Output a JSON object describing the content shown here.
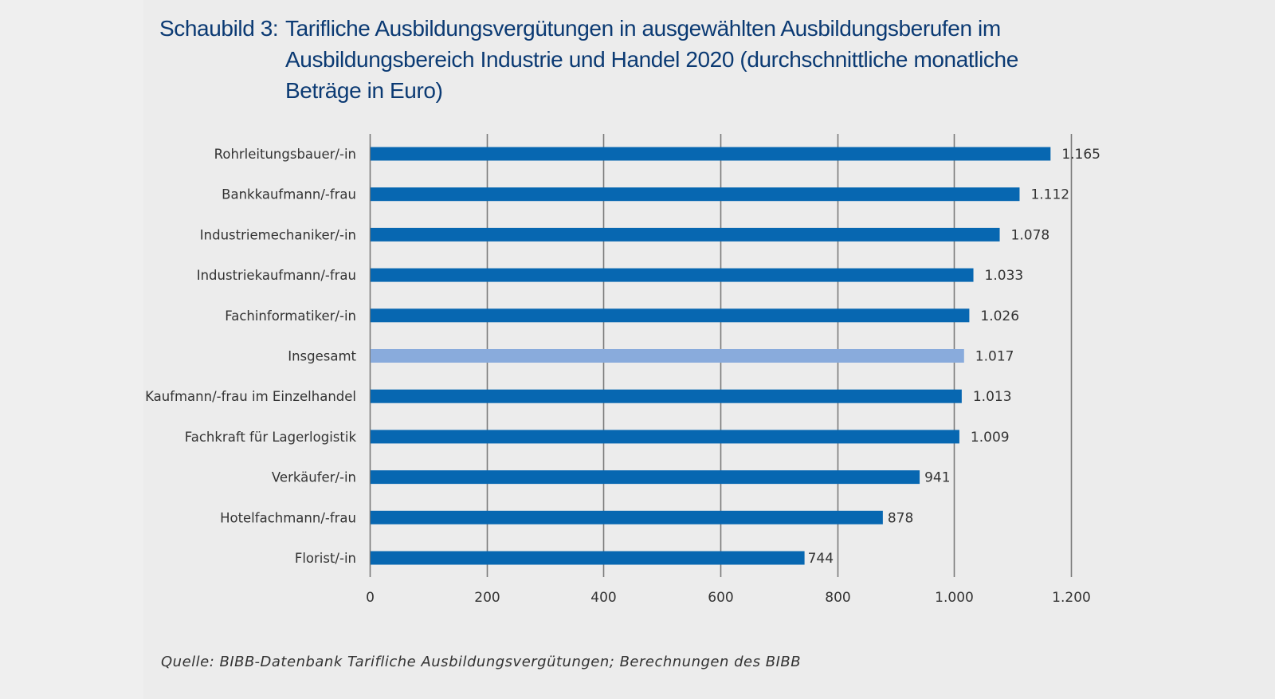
{
  "title": {
    "prefix": "Schaubild 3:",
    "line1": "Tarifliche Ausbildungsvergütungen in ausgewählten Ausbildungsberufen im",
    "line2": "Ausbildungsbereich Industrie und Handel 2020 (durchschnittliche monatliche",
    "line3": "Beträge in Euro)"
  },
  "source": "Quelle: BIBB-Datenbank Tarifliche Ausbildungsvergütungen; Berechnungen des BIBB",
  "colors": {
    "bar": "#0767b1",
    "highlight_bar": "#89abdc",
    "grid": "#7a7a7a",
    "title": "#0b3a73"
  },
  "chart_data": {
    "type": "bar",
    "orientation": "horizontal",
    "title": "Schaubild 3: Tarifliche Ausbildungsvergütungen in ausgewählten Ausbildungsberufen im Ausbildungsbereich Industrie und Handel 2020 (durchschnittliche monatliche Beträge in Euro)",
    "xlabel": "",
    "ylabel": "",
    "xlim": [
      0,
      1200
    ],
    "xticks": [
      0,
      200,
      400,
      600,
      800,
      1000,
      1200
    ],
    "xtick_labels": [
      "0",
      "200",
      "400",
      "600",
      "800",
      "1.000",
      "1.200"
    ],
    "grid": true,
    "categories": [
      "Rohrleitungsbauer/-in",
      "Bankkaufmann/-frau",
      "Industriemechaniker/-in",
      "Industriekaufmann/-frau",
      "Fachinformatiker/-in",
      "Insgesamt",
      "Kaufmann/-frau im Einzelhandel",
      "Fachkraft für Lagerlogistik",
      "Verkäufer/-in",
      "Hotelfachmann/-frau",
      "Florist/-in"
    ],
    "values": [
      1165,
      1112,
      1078,
      1033,
      1026,
      1017,
      1013,
      1009,
      941,
      878,
      744
    ],
    "value_labels": [
      "1.165",
      "1.112",
      "1.078",
      "1.033",
      "1.026",
      "1.017",
      "1.013",
      "1.009",
      "941",
      "878",
      "744"
    ],
    "highlight": [
      "Insgesamt"
    ]
  }
}
